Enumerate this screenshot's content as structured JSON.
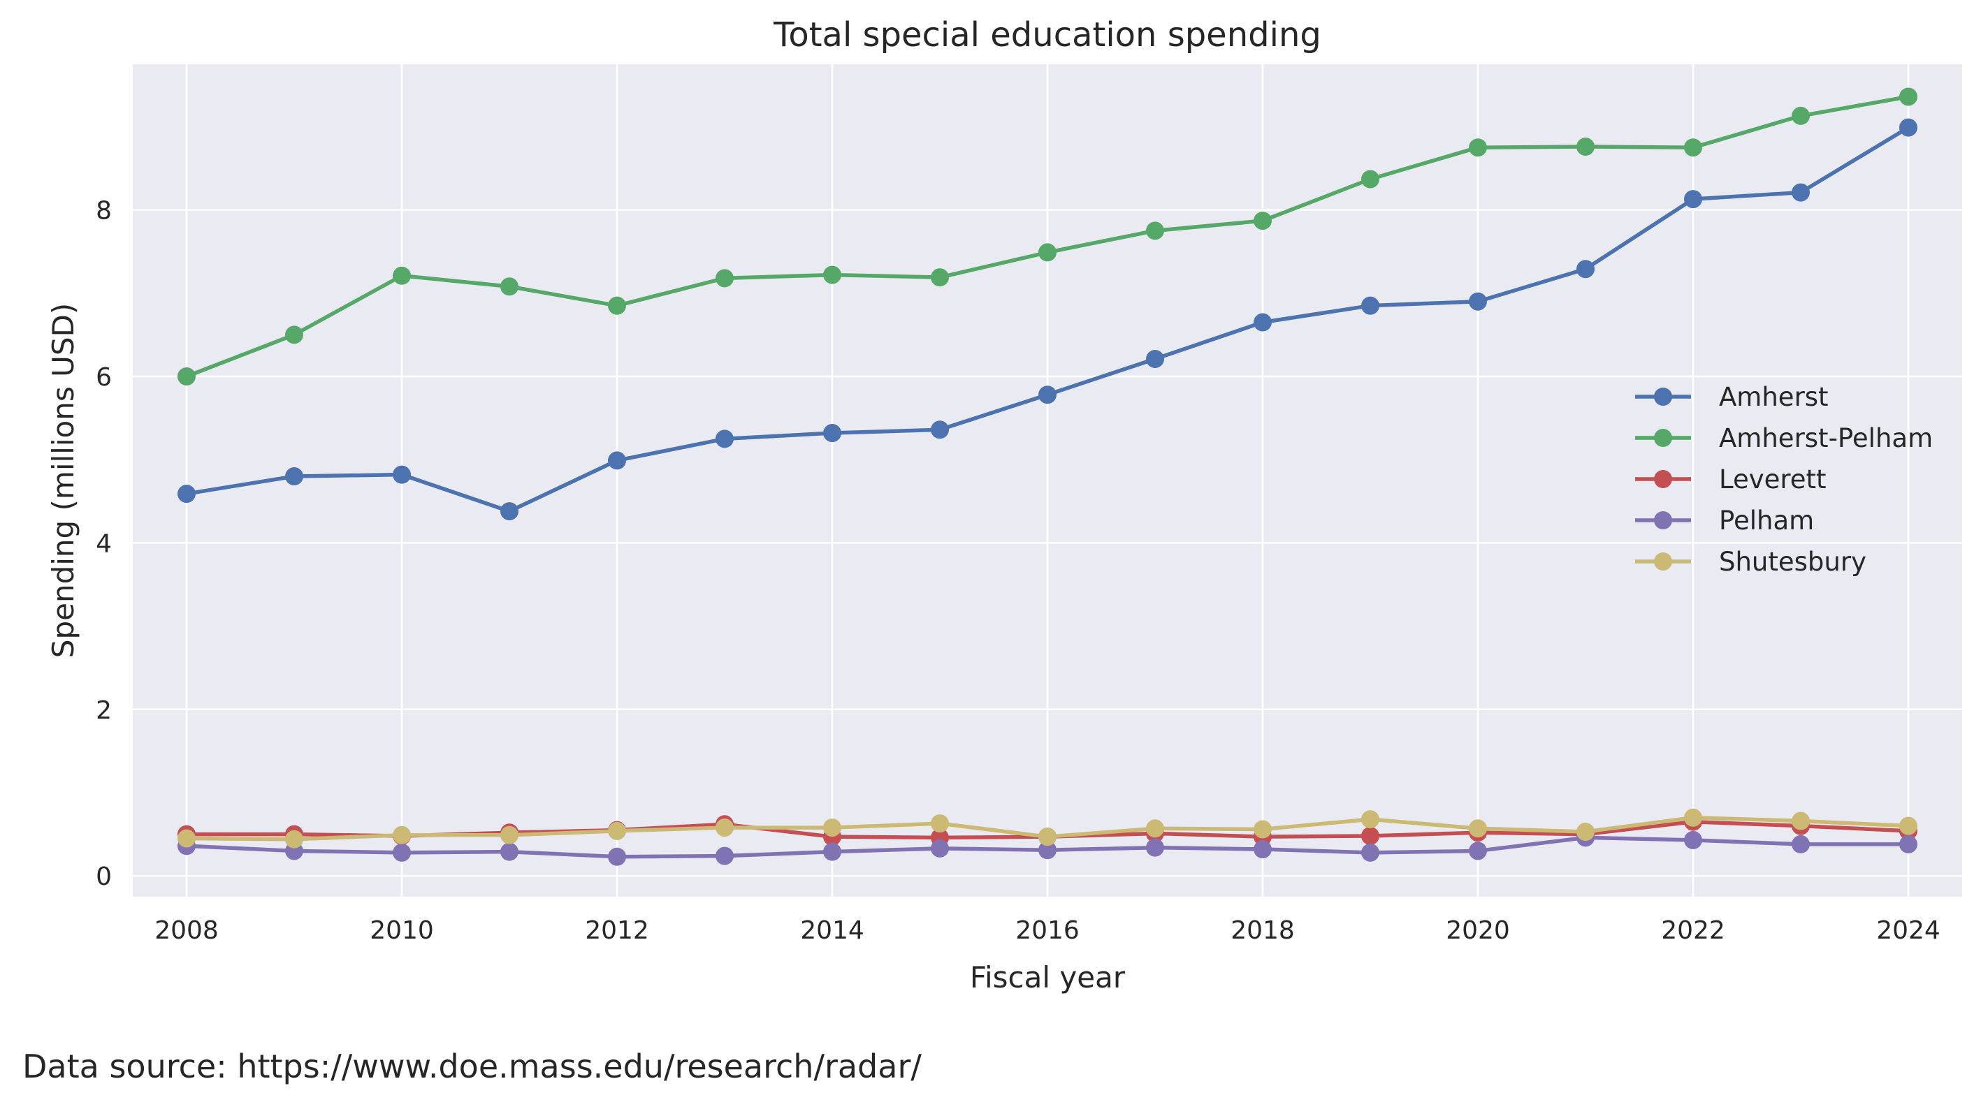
{
  "chart_data": {
    "type": "line",
    "title": "Total special education spending",
    "xlabel": "Fiscal year",
    "ylabel": "Spending (millions USD)",
    "xlim": [
      2007.5,
      2024.5
    ],
    "ylim": [
      -0.25,
      9.75
    ],
    "x_ticks": [
      2008,
      2010,
      2012,
      2014,
      2016,
      2018,
      2020,
      2022,
      2024
    ],
    "y_ticks": [
      0,
      2,
      4,
      6,
      8
    ],
    "grid": true,
    "legend_position": "center-right",
    "x": [
      2008,
      2009,
      2010,
      2011,
      2012,
      2013,
      2014,
      2015,
      2016,
      2017,
      2018,
      2019,
      2020,
      2021,
      2022,
      2023,
      2024
    ],
    "series": [
      {
        "name": "Amherst",
        "color": "#4c72b0",
        "values": [
          4.59,
          4.8,
          4.82,
          4.38,
          4.99,
          5.25,
          5.32,
          5.36,
          5.78,
          6.21,
          6.65,
          6.85,
          6.9,
          7.29,
          8.13,
          8.21,
          8.99
        ]
      },
      {
        "name": "Amherst-Pelham",
        "color": "#55a868",
        "values": [
          6.0,
          6.5,
          7.21,
          7.08,
          6.85,
          7.18,
          7.22,
          7.19,
          7.49,
          7.75,
          7.87,
          8.37,
          8.75,
          8.76,
          8.75,
          9.13,
          9.36
        ]
      },
      {
        "name": "Leverett",
        "color": "#c44e52",
        "values": [
          0.5,
          0.5,
          0.48,
          0.52,
          0.55,
          0.62,
          0.47,
          0.46,
          0.47,
          0.51,
          0.47,
          0.48,
          0.52,
          0.5,
          0.65,
          0.6,
          0.54
        ]
      },
      {
        "name": "Pelham",
        "color": "#8172b3",
        "values": [
          0.36,
          0.3,
          0.28,
          0.29,
          0.23,
          0.24,
          0.29,
          0.33,
          0.31,
          0.34,
          0.32,
          0.28,
          0.3,
          0.46,
          0.43,
          0.38,
          0.38
        ]
      },
      {
        "name": "Shutesbury",
        "color": "#ccb974",
        "values": [
          0.45,
          0.44,
          0.49,
          0.49,
          0.54,
          0.58,
          0.58,
          0.63,
          0.47,
          0.57,
          0.56,
          0.68,
          0.57,
          0.53,
          0.7,
          0.66,
          0.6
        ]
      }
    ]
  },
  "footer": {
    "source": "Data source: https://www.doe.mass.edu/research/radar/"
  }
}
